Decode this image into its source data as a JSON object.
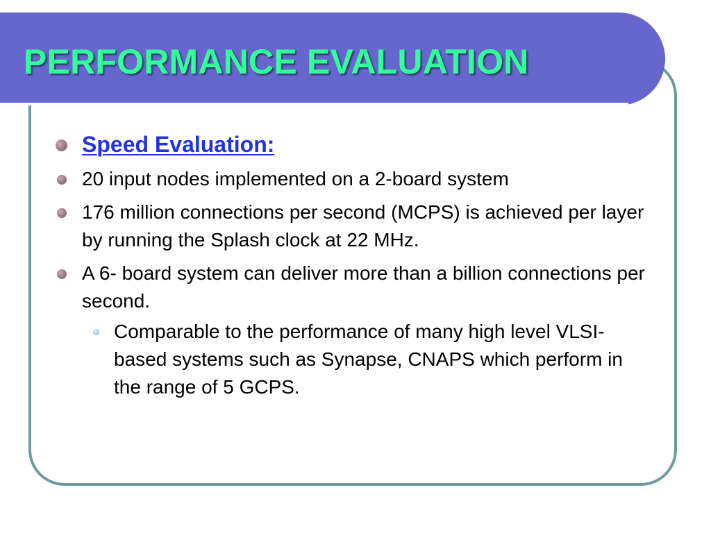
{
  "slide": {
    "title": "PERFORMANCE EVALUATION",
    "colors": {
      "title_band": "#6666cc",
      "title_text": "#33ff99",
      "frame_border": "#6f9a9b",
      "heading_text": "#2233dd",
      "bullet": "#9a7880",
      "sub_bullet": "#a9cdea"
    },
    "heading": "Speed Evaluation:",
    "bullets": [
      {
        "text": "20 input nodes implemented on a 2-board system"
      },
      {
        "text": "176 million connections per second (MCPS) is achieved per layer by running the Splash clock at 22 MHz."
      },
      {
        "text": "A 6- board system can deliver more than a billion connections per second."
      }
    ],
    "sub_bullets": [
      {
        "text": "Comparable to the performance of many high level VLSI-based systems such as Synapse, CNAPS which perform in the range of 5 GCPS."
      }
    ]
  }
}
